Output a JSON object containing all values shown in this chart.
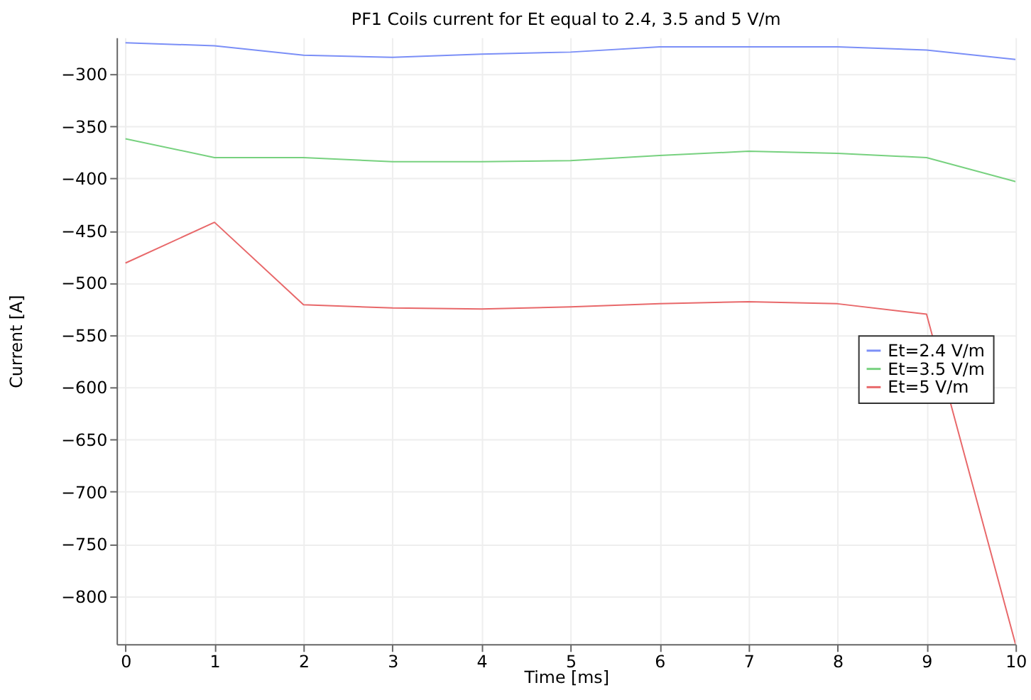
{
  "chart_data": {
    "type": "line",
    "title": "PF1 Coils current for Et equal to 2.4, 3.5 and 5 V/m",
    "xlabel": "Time [ms]",
    "ylabel": "Current [A]",
    "x": [
      0,
      1,
      2,
      3,
      4,
      5,
      6,
      7,
      8,
      9,
      10
    ],
    "series": [
      {
        "name": "Et=2.4 V/m",
        "color": "#7b8ff7",
        "values": [
          -270,
          -273,
          -282,
          -284,
          -281,
          -279,
          -274,
          -274,
          -274,
          -277,
          -286
        ]
      },
      {
        "name": "Et=3.5 V/m",
        "color": "#77d17f",
        "values": [
          -362,
          -380,
          -380,
          -384,
          -384,
          -383,
          -378,
          -374,
          -376,
          -380,
          -403
        ]
      },
      {
        "name": "Et=5 V/m",
        "color": "#e8686a",
        "values": [
          -481,
          -442,
          -521,
          -524,
          -525,
          -523,
          -520,
          -518,
          -520,
          -530,
          -846
        ]
      }
    ],
    "xlim": [
      -0.1,
      10
    ],
    "xticks": [
      0,
      1,
      2,
      3,
      4,
      5,
      6,
      7,
      8,
      9,
      10
    ],
    "ylim": [
      -846,
      -265
    ],
    "yticks": [
      -300,
      -350,
      -400,
      -450,
      -500,
      -550,
      -600,
      -650,
      -700,
      -750,
      -800
    ],
    "grid": true,
    "legend": "right",
    "marker": "none",
    "line_style": "solid"
  }
}
